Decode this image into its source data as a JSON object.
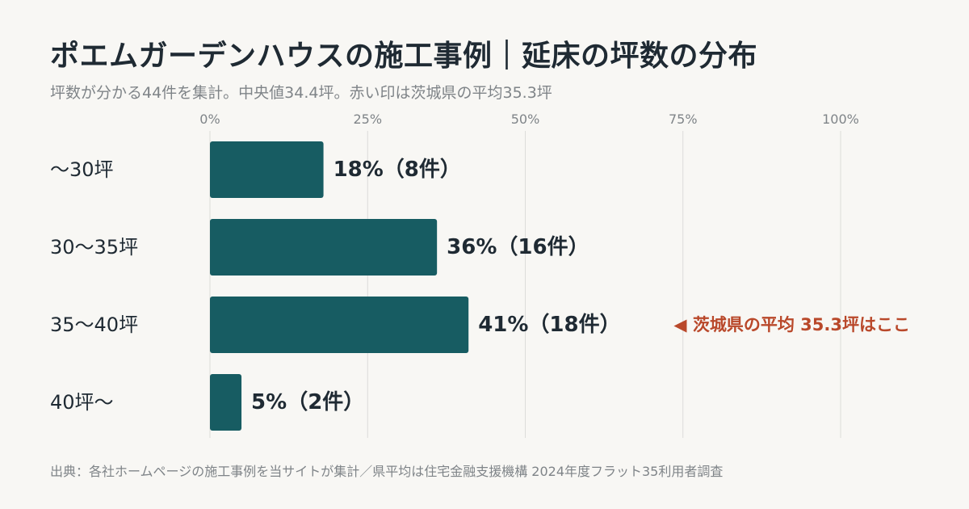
{
  "header": {
    "title": "ポエムガーデンハウスの施工事例｜延床の坪数の分布",
    "subtitle": "坪数が分かる44件を集計。中央値34.4坪。赤い印は茨城県の平均35.3坪"
  },
  "footer": {
    "source": "出典：各社ホームページの施工事例を当サイトが集計／県平均は住宅金融支援機構 2024年度フラット35利用者調査"
  },
  "colors": {
    "bar": "#175c62",
    "grid": "#dcdcd9",
    "axis_text": "#7f8488",
    "label_text": "#1f2a33",
    "annotation": "#b9482a"
  },
  "chart_data": {
    "type": "bar",
    "orientation": "horizontal",
    "title": "",
    "xlabel": "",
    "ylabel": "",
    "xlim": [
      0,
      100
    ],
    "ticks": [
      "0%",
      "25%",
      "50%",
      "75%",
      "100%"
    ],
    "tick_values": [
      0,
      25,
      50,
      75,
      100
    ],
    "grid": true,
    "categories": [
      "〜30坪",
      "30〜35坪",
      "35〜40坪",
      "40坪〜"
    ],
    "values": [
      18,
      36,
      41,
      5
    ],
    "data_labels": [
      "18%（8件）",
      "36%（16件）",
      "41%（18件）",
      "5%（2件）"
    ],
    "annotation": {
      "category": "35〜40坪",
      "text": "◀ 茨城県の平均 35.3坪はここ"
    }
  }
}
